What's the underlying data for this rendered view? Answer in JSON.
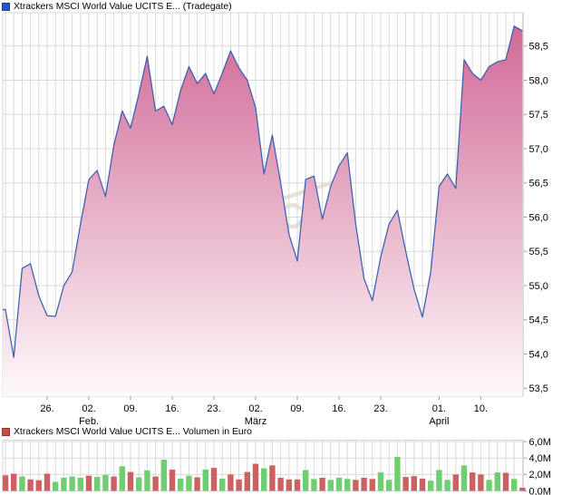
{
  "price_chart": {
    "legend": "Xtrackers MSCI World Value UCITS E... (Tradegate)",
    "legend_marker_color": "#2457c5",
    "legend_marker_border": "#1a3f94"
  },
  "volume_chart": {
    "legend": "Xtrackers MSCI World Value UCITS E... Volumen in Euro",
    "legend_marker_color": "#cc4b45",
    "legend_marker_border": "#94342f"
  },
  "colors": {
    "line": "#3a5fb0",
    "area_top": "#cf6492",
    "area_bottom": "#fefafc",
    "grid": "#d9d9d9",
    "tick": "#999999",
    "label": "#000000",
    "volume_up": "#6fce6f",
    "volume_down": "#cd6161",
    "watermark": "#e8e2d6"
  },
  "chart_data": [
    {
      "type": "area",
      "title": "Xtrackers MSCI World Value UCITS E... (Tradegate)",
      "ylabel": "",
      "xlabel": "",
      "ylim": [
        53.5,
        58.5
      ],
      "grid": true,
      "legend_position": "top-left",
      "y_ticks": [
        {
          "value": 58.5,
          "label": "58,5"
        },
        {
          "value": 58.0,
          "label": "58,0"
        },
        {
          "value": 57.5,
          "label": "57,5"
        },
        {
          "value": 57.0,
          "label": "57,0"
        },
        {
          "value": 56.5,
          "label": "56,5"
        },
        {
          "value": 56.0,
          "label": "56,0"
        },
        {
          "value": 55.5,
          "label": "55,5"
        },
        {
          "value": 55.0,
          "label": "55,0"
        },
        {
          "value": 54.5,
          "label": "54,5"
        },
        {
          "value": 54.0,
          "label": "54,0"
        },
        {
          "value": 53.5,
          "label": "53,5"
        }
      ],
      "x_ticks": [
        {
          "index": 5,
          "label": "26."
        },
        {
          "index": 10,
          "label": "02."
        },
        {
          "index": 15,
          "label": "09."
        },
        {
          "index": 20,
          "label": "16."
        },
        {
          "index": 25,
          "label": "23."
        },
        {
          "index": 30,
          "label": "02."
        },
        {
          "index": 35,
          "label": "09."
        },
        {
          "index": 40,
          "label": "16."
        },
        {
          "index": 45,
          "label": "23."
        },
        {
          "index": 52,
          "label": "01."
        },
        {
          "index": 57,
          "label": "10."
        }
      ],
      "month_labels": [
        {
          "index": 10,
          "label": "Feb."
        },
        {
          "index": 30,
          "label": "März"
        },
        {
          "index": 52,
          "label": "April"
        }
      ],
      "values": [
        54.65,
        53.95,
        55.25,
        55.32,
        54.85,
        54.56,
        54.55,
        55.0,
        55.2,
        55.9,
        56.55,
        56.68,
        56.3,
        57.05,
        57.55,
        57.3,
        57.8,
        58.35,
        57.55,
        57.62,
        57.35,
        57.85,
        58.2,
        57.95,
        58.1,
        57.8,
        58.1,
        58.43,
        58.18,
        58.0,
        57.6,
        56.63,
        57.2,
        56.5,
        55.75,
        55.36,
        56.55,
        56.6,
        55.97,
        56.45,
        56.75,
        56.94,
        55.9,
        55.1,
        54.78,
        55.42,
        55.9,
        56.1,
        55.5,
        54.95,
        54.54,
        55.2,
        56.45,
        56.63,
        56.42,
        58.3,
        58.1,
        58.0,
        58.2,
        58.27,
        58.3,
        58.79,
        58.72
      ]
    },
    {
      "type": "bar",
      "title": "Xtrackers MSCI World Value UCITS E... Volumen in Euro",
      "ylabel": "Volumen in Euro",
      "ylim": [
        0,
        6.2
      ],
      "grid": true,
      "y_ticks": [
        {
          "value": 6,
          "label": "6,0M"
        },
        {
          "value": 4,
          "label": "4,0M"
        },
        {
          "value": 2,
          "label": "2,0M"
        },
        {
          "value": 0,
          "label": "0,0M"
        }
      ],
      "values": [
        1.9,
        2.1,
        1.75,
        1.4,
        1.3,
        2.1,
        1.1,
        1.6,
        1.75,
        1.6,
        1.85,
        1.7,
        1.95,
        1.75,
        3.0,
        2.3,
        1.65,
        2.5,
        1.75,
        3.8,
        2.6,
        1.5,
        1.85,
        1.65,
        2.6,
        2.8,
        1.5,
        2.0,
        1.4,
        2.3,
        3.3,
        2.75,
        3.1,
        1.6,
        1.4,
        1.4,
        2.55,
        1.45,
        1.6,
        1.35,
        1.6,
        1.45,
        1.35,
        1.6,
        1.45,
        2.25,
        1.35,
        4.15,
        1.7,
        1.8,
        1.5,
        1.25,
        2.55,
        1.35,
        2.0,
        3.1,
        2.25,
        2.0,
        1.35,
        2.25,
        2.2,
        1.45,
        0.4
      ],
      "bar_colors": [
        "down",
        "down",
        "up",
        "down",
        "down",
        "down",
        "up",
        "up",
        "up",
        "up",
        "down",
        "up",
        "up",
        "down",
        "up",
        "down",
        "up",
        "up",
        "down",
        "up",
        "down",
        "up",
        "up",
        "down",
        "up",
        "down",
        "up",
        "down",
        "down",
        "down",
        "down",
        "up",
        "down",
        "down",
        "down",
        "down",
        "up",
        "up",
        "down",
        "up",
        "up",
        "up",
        "down",
        "down",
        "down",
        "up",
        "up",
        "up",
        "down",
        "down",
        "down",
        "up",
        "up",
        "up",
        "down",
        "up",
        "down",
        "down",
        "up",
        "up",
        "down",
        "up",
        "down"
      ]
    }
  ],
  "watermark_text": "C"
}
